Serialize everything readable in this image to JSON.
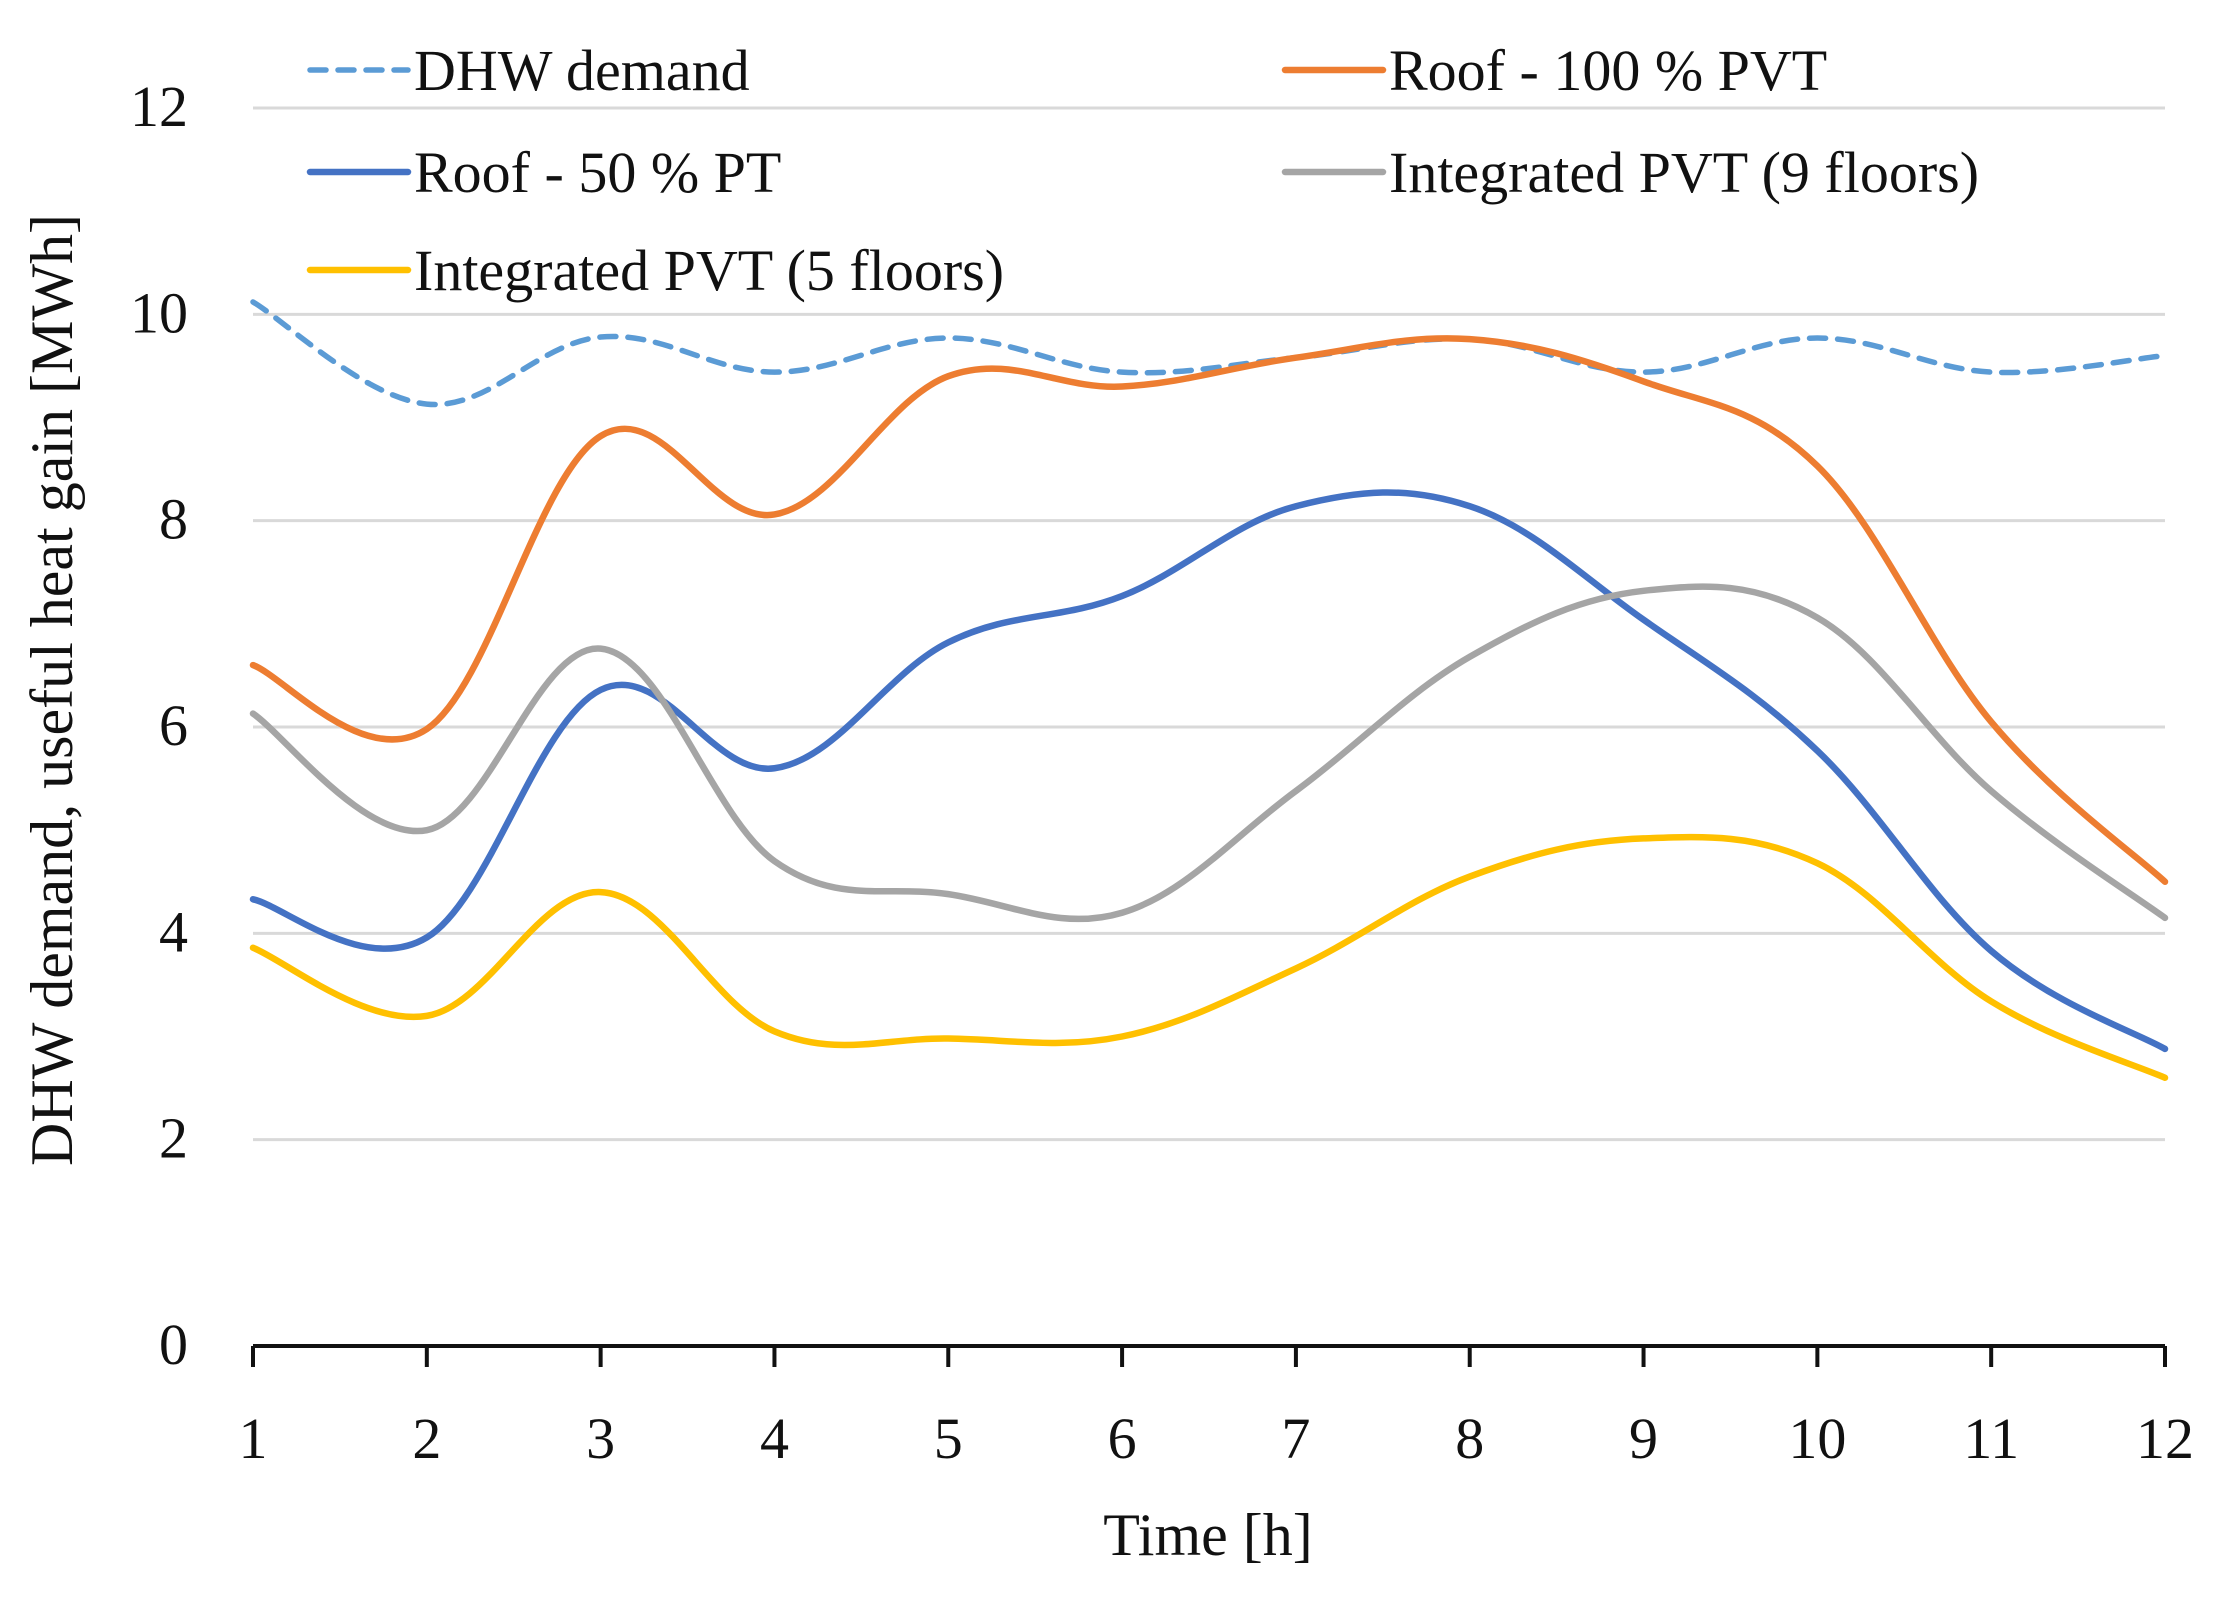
{
  "chart_data": {
    "type": "line",
    "title": "",
    "xlabel": "Time [h]",
    "ylabel": "DHW demand, useful heat gain [MWh]",
    "x": [
      1,
      2,
      3,
      4,
      5,
      6,
      7,
      8,
      9,
      10,
      11,
      12
    ],
    "xlim": [
      1,
      12
    ],
    "ylim": [
      0,
      12
    ],
    "x_ticks": [
      "1",
      "2",
      "3",
      "4",
      "5",
      "6",
      "7",
      "8",
      "9",
      "10",
      "11",
      "12"
    ],
    "y_ticks": [
      "0",
      "2",
      "4",
      "6",
      "8",
      "10",
      "12"
    ],
    "grid": "horizontal",
    "legend_position": "top",
    "series": [
      {
        "name": "DHW demand",
        "color": "#5B9BD5",
        "style": "dashed",
        "values": [
          10.12,
          9.13,
          9.78,
          9.44,
          9.77,
          9.44,
          9.58,
          9.76,
          9.44,
          9.77,
          9.44,
          9.6
        ]
      },
      {
        "name": "Roof - 100 % PVT",
        "color": "#ED7D31",
        "style": "solid",
        "values": [
          6.6,
          5.98,
          8.82,
          8.06,
          9.4,
          9.3,
          9.58,
          9.76,
          9.35,
          8.53,
          6.05,
          4.5
        ]
      },
      {
        "name": "Roof - 50 % PT",
        "color": "#4472C4",
        "style": "solid",
        "values": [
          4.33,
          3.96,
          6.36,
          5.6,
          6.82,
          7.27,
          8.14,
          8.14,
          7.04,
          5.77,
          3.83,
          2.88
        ]
      },
      {
        "name": "Integrated PVT (9 floors)",
        "color": "#A5A5A5",
        "style": "solid",
        "values": [
          6.13,
          5.0,
          6.76,
          4.7,
          4.38,
          4.2,
          5.38,
          6.68,
          7.32,
          7.06,
          5.38,
          4.15
        ]
      },
      {
        "name": "Integrated PVT (5 floors)",
        "color": "#FFC000",
        "style": "solid",
        "values": [
          3.86,
          3.2,
          4.4,
          3.05,
          2.98,
          3.0,
          3.66,
          4.55,
          4.92,
          4.68,
          3.34,
          2.6
        ]
      }
    ]
  }
}
